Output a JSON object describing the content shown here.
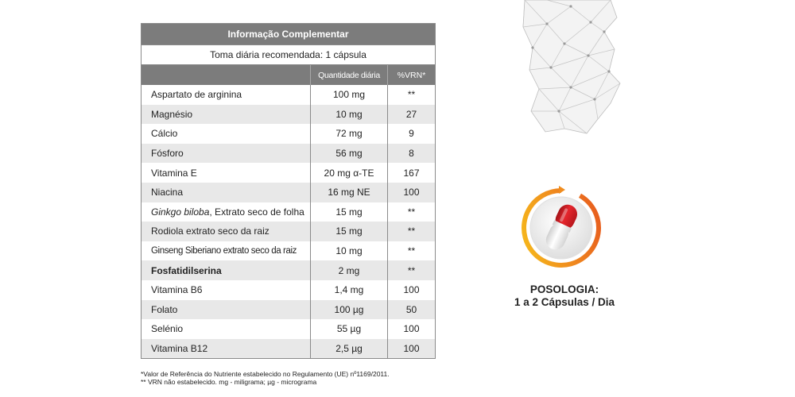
{
  "table": {
    "title": "Informação Complementar",
    "subtitle": "Toma diária recomendada: 1 cápsula",
    "col_quantity": "Quantidade diária",
    "col_vrn": "%VRN*",
    "rows": [
      {
        "name": "Aspartato de arginina",
        "qty": "100 mg",
        "vrn": "**"
      },
      {
        "name": "Magnésio",
        "qty": "10 mg",
        "vrn": "27"
      },
      {
        "name": "Cálcio",
        "qty": "72 mg",
        "vrn": "9"
      },
      {
        "name": "Fósforo",
        "qty": "56 mg",
        "vrn": "8"
      },
      {
        "name": "Vitamina E",
        "qty": "20 mg α-TE",
        "vrn": "167"
      },
      {
        "name": "Niacina",
        "qty": "16 mg NE",
        "vrn": "100"
      },
      {
        "name_italic": "Ginkgo biloba",
        "name_rest": ", Extrato seco de folha",
        "qty": "15 mg",
        "vrn": "**"
      },
      {
        "name": "Rodiola extrato seco da raiz",
        "qty": "15 mg",
        "vrn": "**"
      },
      {
        "name": "Ginseng Siberiano extrato seco da raiz",
        "qty": "10 mg",
        "vrn": "**"
      },
      {
        "name": "Fosfatidilserina",
        "qty": "2 mg",
        "vrn": "**"
      },
      {
        "name": "Vitamina B6",
        "qty": "1,4 mg",
        "vrn": "100"
      },
      {
        "name": "Folato",
        "qty": "100 µg",
        "vrn": "50"
      },
      {
        "name": "Selénio",
        "qty": "55 µg",
        "vrn": "100"
      },
      {
        "name": "Vitamina B12",
        "qty": "2,5 µg",
        "vrn": "100"
      }
    ]
  },
  "footnotes": {
    "line1": "*Valor de Referência do Nutriente estabelecido no Regulamento (UE) nº1169/2011.",
    "line2": "** VRN não estabelecido. mg - miligrama; µg - micrograma"
  },
  "posology": {
    "label": "POSOLOGIA:",
    "dose": "1 a 2 Cápsulas / Dia"
  },
  "icons": {
    "map": "portugal-polygon-map-icon",
    "capsule": "capsule-icon"
  },
  "colors": {
    "header_gray": "#7c7c7c",
    "row_alt": "#e8e8e8",
    "capsule_red": "#d8232a",
    "ring_orange": "#f08c1e",
    "ring_yellow": "#f7c21b"
  }
}
